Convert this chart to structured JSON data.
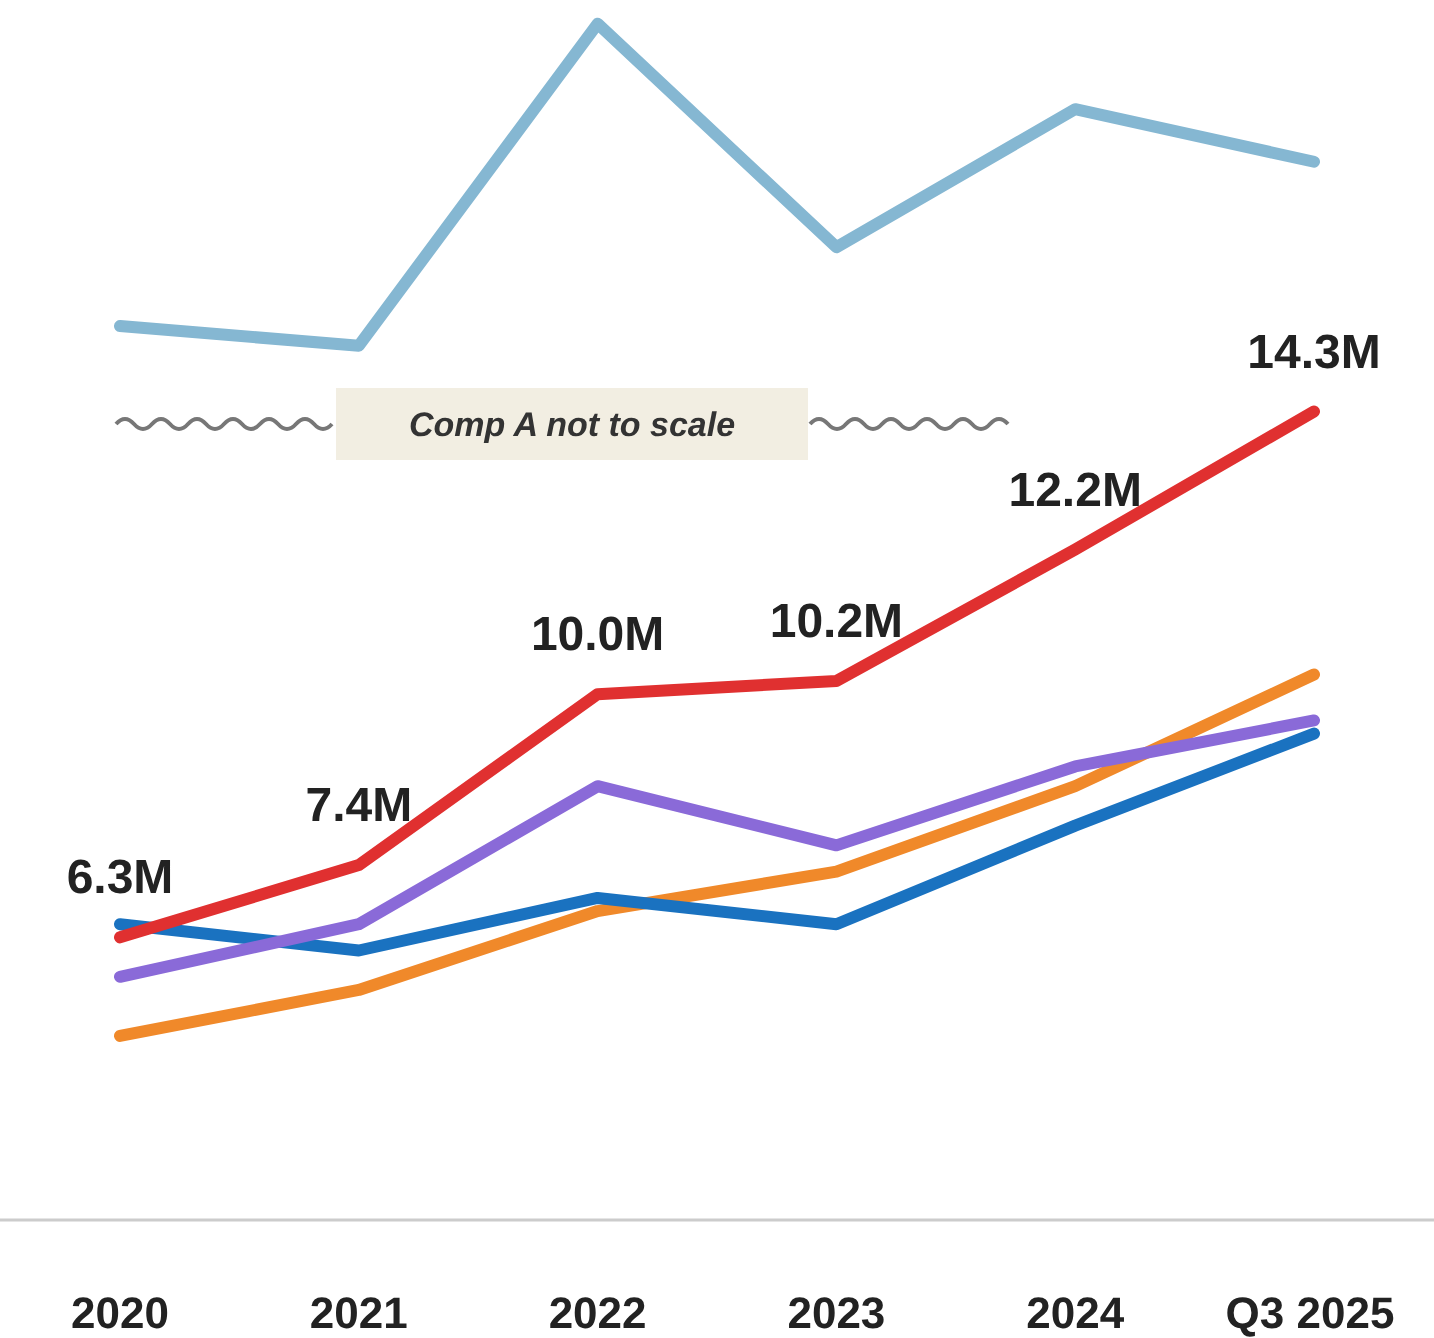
{
  "chart_data": {
    "type": "line",
    "categories": [
      "2020",
      "2021",
      "2022",
      "2023",
      "2024",
      "Q3 2025"
    ],
    "ylim": [
      2,
      20.5
    ],
    "tick_labels": "x",
    "line_style": "solid",
    "annotations": [
      "Comp A not to scale"
    ],
    "series": [
      {
        "color": "#85b7d2",
        "values": [
          15.6,
          15.3,
          20.2,
          16.8,
          18.9,
          18.1
        ]
      },
      {
        "color": "#f0892a",
        "values": [
          4.8,
          5.5,
          6.7,
          7.3,
          8.6,
          10.3
        ]
      },
      {
        "color": "#1a72c0",
        "values": [
          6.5,
          6.1,
          6.9,
          6.5,
          8.0,
          9.4
        ]
      },
      {
        "color": "#8a6ad8",
        "values": [
          5.7,
          6.5,
          8.6,
          7.7,
          8.9,
          9.6
        ]
      },
      {
        "color": "#e03030",
        "values": [
          6.3,
          7.4,
          10.0,
          10.2,
          12.2,
          14.3
        ],
        "value_labels": [
          "6.3M",
          "7.4M",
          "10.0M",
          "10.2M",
          "12.2M",
          "14.3M"
        ]
      }
    ]
  }
}
